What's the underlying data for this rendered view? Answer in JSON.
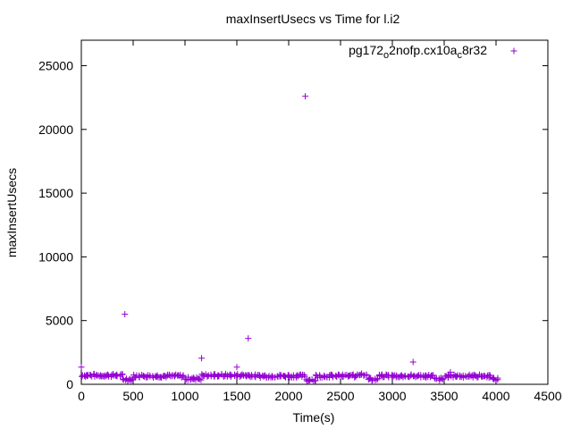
{
  "chart_data": {
    "type": "scatter",
    "title": "maxInsertUsecs vs Time for l.i2",
    "xlabel": "Time(s)",
    "ylabel": "maxInsertUsecs",
    "xlim": [
      0,
      4500
    ],
    "ylim": [
      0,
      27000
    ],
    "xticks": [
      0,
      500,
      1000,
      1500,
      2000,
      2500,
      3000,
      3500,
      4000,
      4500
    ],
    "yticks": [
      0,
      5000,
      10000,
      15000,
      20000,
      25000
    ],
    "legend_position": "top-right",
    "legend": {
      "prefix": "pg172",
      "sub1": "o",
      "mid": "2nofp.cx10a",
      "sub2": "c",
      "suffix": "8r32"
    },
    "series": [
      {
        "name": "pg172_o2nofp.cx10a_c8r32",
        "color": "#9400d3",
        "marker": "plus",
        "outliers": [
          [
            0,
            1350
          ],
          [
            420,
            5500
          ],
          [
            1160,
            2050
          ],
          [
            1500,
            1350
          ],
          [
            1610,
            3600
          ],
          [
            2160,
            22600
          ],
          [
            3200,
            1750
          ],
          [
            3560,
            950
          ]
        ],
        "baseline": {
          "x_start": 0,
          "x_end": 4000,
          "x_step": 20,
          "segments": [
            [
              0,
              400,
              700
            ],
            [
              400,
              500,
              400
            ],
            [
              500,
              1000,
              650
            ],
            [
              1000,
              1150,
              450
            ],
            [
              1150,
              1650,
              700
            ],
            [
              1650,
              2150,
              650
            ],
            [
              2150,
              2250,
              350
            ],
            [
              2250,
              2650,
              650
            ],
            [
              2650,
              2750,
              800
            ],
            [
              2750,
              2850,
              400
            ],
            [
              2850,
              3400,
              650
            ],
            [
              3400,
              3500,
              400
            ],
            [
              3500,
              3950,
              650
            ],
            [
              3950,
              4000,
              400
            ]
          ],
          "spread": 120
        }
      }
    ]
  }
}
